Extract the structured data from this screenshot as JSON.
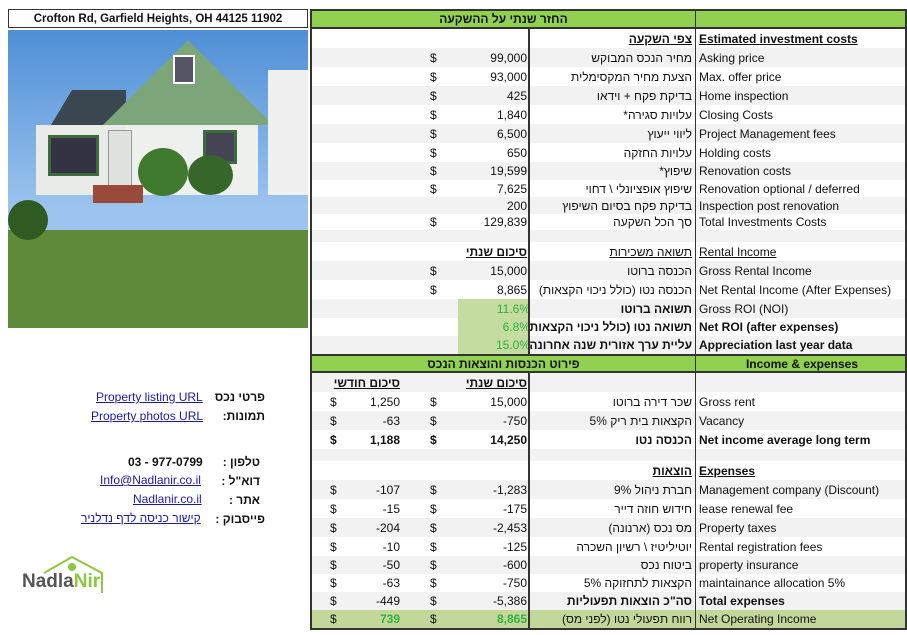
{
  "address": "Crofton Rd, Garfield Heights, OH 44125 11902",
  "sections": {
    "returns_title": "החזר שנתי על ההשקעה",
    "income_expenses_he": "פירוט הכנסות והוצאות הנכס",
    "income_expenses_en": "Income & expenses"
  },
  "rows": [
    {
      "type": "green",
      "he": "",
      "en": "",
      "key": "returns"
    },
    {
      "type": "sub",
      "he": "צפי השקעה",
      "en": "Estimated investment costs"
    },
    {
      "he": "מחיר הנכס המבוקש",
      "en": "Asking price",
      "annual": "99,000",
      "cur": "$"
    },
    {
      "he": "הצעת מחיר המקסימלית",
      "en": "Max. offer price",
      "annual": "93,000",
      "cur": "$"
    },
    {
      "he": "בדיקת פקח + וידאו",
      "en": "Home inspection",
      "annual": "425",
      "cur": "$"
    },
    {
      "he": "עלויות סגירה*",
      "en": "Closing Costs",
      "annual": "1,840",
      "cur": "$"
    },
    {
      "he": "ליווי ייעוץ",
      "en": "Project Management fees",
      "annual": "6,500",
      "cur": "$"
    },
    {
      "he": "עלויות החזקה",
      "en": "Holding costs",
      "annual": "650",
      "cur": "$"
    },
    {
      "he": "שיפוץ*",
      "en": "Renovation costs",
      "annual": "19,599",
      "cur": "$"
    },
    {
      "he": "שיפוץ אופציונלי \\ דחוי",
      "en": "Renovation optional / deferred",
      "annual": "7,625",
      "cur": "$"
    },
    {
      "he": "בדיקת פקח בסיום השיפוץ",
      "en": "Inspection post renovation",
      "annual": "200"
    },
    {
      "he": "סך הכל השקעה",
      "en": "Total Investments Costs",
      "annual": "129,839",
      "cur": "$"
    },
    {
      "type": "blank"
    },
    {
      "type": "rental",
      "he": "תשואה משכירות",
      "en": "Rental Income",
      "annual": "סיכום שנתי"
    },
    {
      "he": "הכנסה ברוטו",
      "en": "Gross Rental Income",
      "annual": "15,000",
      "cur": "$"
    },
    {
      "he": "הכנסה נטו (כולל ניכוי הקצאות)",
      "en": "Net Rental Income (After Expenses)",
      "annual": "8,865",
      "cur": "$"
    },
    {
      "type": "roi",
      "he": "תשואה ברוטו",
      "en": "Gross ROI (NOI)",
      "annual": "11.6%"
    },
    {
      "type": "roi",
      "he": "תשואה נטו (כולל ניכוי הקצאות)",
      "en": "Net ROI (after expenses)",
      "annual": "6.8%",
      "bold_en": true
    },
    {
      "type": "roi",
      "he": "עליית ערך אזורית שנה אחרונה",
      "en": "Appreciation last year data",
      "annual": "15.0%",
      "bold_en": true
    },
    {
      "type": "green",
      "key": "income"
    },
    {
      "type": "colhead",
      "annual": "סיכום שנתי",
      "monthly": "סיכום חודשי"
    },
    {
      "he": "שכר דירה ברוטו",
      "en": "Gross rent",
      "annual": "15,000",
      "monthly": "1,250",
      "cur": "$"
    },
    {
      "he": "הקצאות בית ריק 5%",
      "en": "Vacancy",
      "annual": "-750",
      "monthly": "-63",
      "cur": "$"
    },
    {
      "type": "bold",
      "he": "הכנסה נטו",
      "en": "Net income average long term",
      "annual": "14,250",
      "monthly": "1,188",
      "cur": "$"
    },
    {
      "type": "blank"
    },
    {
      "type": "exp",
      "he": "הוצאות",
      "en": "Expenses"
    },
    {
      "he": "חברת ניהול 9%",
      "en": "Management company (Discount)",
      "annual": "-1,283",
      "monthly": "-107",
      "cur": "$"
    },
    {
      "he": "חידוש חוזה דייר",
      "en": "lease renewal fee",
      "annual": "-175",
      "monthly": "-15",
      "cur": "$"
    },
    {
      "he": "מס נכס (ארנונה)",
      "en": "Property taxes",
      "annual": "-2,453",
      "monthly": "-204",
      "cur": "$"
    },
    {
      "he": "יוטיליטיז \\ רשיון השכרה",
      "en": "Rental registration fees",
      "annual": "-125",
      "monthly": "-10",
      "cur": "$"
    },
    {
      "he": "ביטוח נכס",
      "en": "property insurance",
      "annual": "-600",
      "monthly": "-50",
      "cur": "$"
    },
    {
      "he": "הקצאות לתחזוקה 5%",
      "en": "maintainance allocation 5%",
      "annual": "-750",
      "monthly": "-63",
      "cur": "$"
    },
    {
      "type": "total",
      "he": "סה\"כ הוצאות תפעוליות",
      "en": "Total expenses",
      "annual": "-5,386",
      "monthly": "-449",
      "cur": "$"
    },
    {
      "type": "noi",
      "he": "רווח תפעולי נטו (לפני מס)",
      "en": "Net Operating Income",
      "annual": "8,865",
      "monthly": "739",
      "cur": "$"
    }
  ],
  "contact": {
    "listing_label": "פרטי נכס",
    "listing_link": "Property listing URL",
    "photos_label": "תמונות:",
    "photos_link": "Property photos URL",
    "phone_label": "טלפון :",
    "phone": "03 - 977-0799",
    "email_label": "דוא\"ל :",
    "email": "Info@Nadlanir.co.il",
    "site_label": "אתר :",
    "site": "Nadlanir.co.il",
    "fb_label": "פייסבוק :",
    "fb": "קישור כניסה לדף נדלניר"
  },
  "logo": {
    "text1": "Nadla",
    "text2": "Nir",
    "color_gray": "#555555",
    "color_green": "#8dc63f"
  },
  "colors": {
    "header_green": "#92d050",
    "roi_text": "#2fb040",
    "noi_bg": "#c4d79b"
  }
}
